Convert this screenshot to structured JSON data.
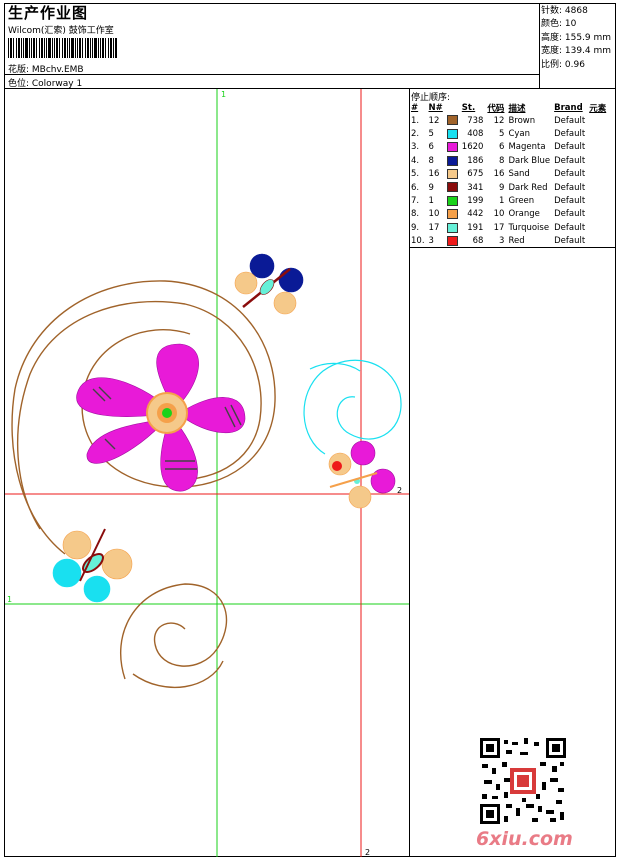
{
  "header": {
    "title": "生产作业图",
    "company": "Wilcom(汇索) 鼓饰工作室",
    "design_label": "花版: MBchv.EMB",
    "colorway_label": "色位: Colorway 1"
  },
  "stats": {
    "stitches": "针数: 4868",
    "colors": "颜色: 10",
    "height": "高度: 155.9 mm",
    "width": "宽度: 139.4 mm",
    "scale": "比例: 0.96"
  },
  "color_table": {
    "title": "停止顺序:",
    "headers": [
      "#",
      "N#",
      "St.",
      "代码",
      "描述",
      "Brand",
      "元素"
    ],
    "rows": [
      {
        "idx": "1.",
        "n": "12",
        "color": "#a0632a",
        "st": "738",
        "code": "12",
        "desc": "Brown",
        "brand": "Default"
      },
      {
        "idx": "2.",
        "n": "5",
        "color": "#19e0f0",
        "st": "408",
        "code": "5",
        "desc": "Cyan",
        "brand": "Default"
      },
      {
        "idx": "3.",
        "n": "6",
        "color": "#e81ad8",
        "st": "1620",
        "code": "6",
        "desc": "Magenta",
        "brand": "Default"
      },
      {
        "idx": "4.",
        "n": "8",
        "color": "#0a1a96",
        "st": "186",
        "code": "8",
        "desc": "Dark Blue",
        "brand": "Default"
      },
      {
        "idx": "5.",
        "n": "16",
        "color": "#f5c98a",
        "st": "675",
        "code": "16",
        "desc": "Sand",
        "brand": "Default"
      },
      {
        "idx": "6.",
        "n": "9",
        "color": "#8a0c0c",
        "st": "341",
        "code": "9",
        "desc": "Dark Red",
        "brand": "Default"
      },
      {
        "idx": "7.",
        "n": "1",
        "color": "#1ad21a",
        "st": "199",
        "code": "1",
        "desc": "Green",
        "brand": "Default"
      },
      {
        "idx": "8.",
        "n": "10",
        "color": "#f5a04a",
        "st": "442",
        "code": "10",
        "desc": "Orange",
        "brand": "Default"
      },
      {
        "idx": "9.",
        "n": "17",
        "color": "#66f0d8",
        "st": "191",
        "code": "17",
        "desc": "Turquoise",
        "brand": "Default"
      },
      {
        "idx": "10.",
        "n": "3",
        "color": "#ee1a1a",
        "st": "68",
        "code": "3",
        "desc": "Red",
        "brand": "Default"
      }
    ]
  },
  "design": {
    "guide_labels": {
      "green_v": "1",
      "green_h": "1",
      "red_h": "2",
      "red_v": "2"
    }
  },
  "watermark": "6xiu.com"
}
